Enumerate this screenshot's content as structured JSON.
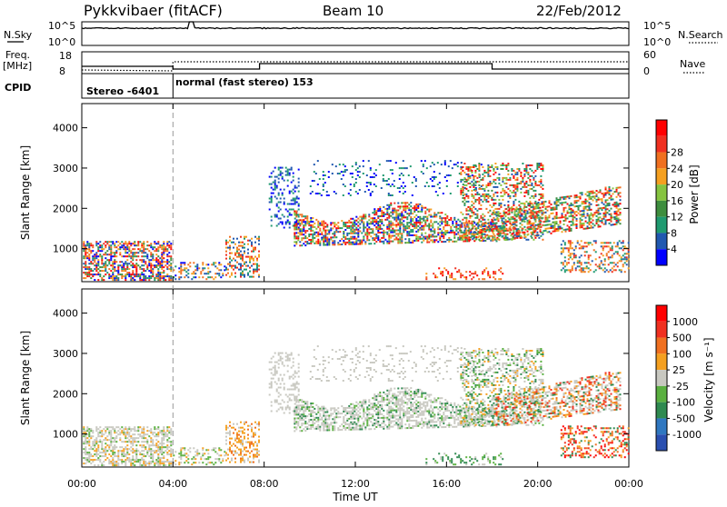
{
  "header": {
    "station": "Pykkvibaer (fitACF)",
    "beam": "Beam 10",
    "date": "22/Feb/2012"
  },
  "summary_panel": {
    "nsky_label": "N.Sky",
    "nsky_ticks": [
      "10^5",
      "10^0"
    ],
    "nsearch_label": "N.Search",
    "nsearch_ticks": [
      "10^5",
      "10^0"
    ],
    "freq_label": "Freq.",
    "freq_unit": "[MHz]",
    "freq_ticks": [
      "18",
      "8"
    ],
    "nave_label": "Nave",
    "nave_ticks": [
      "60",
      "0"
    ],
    "cpid_label": "CPID",
    "cpid_segments": [
      {
        "label": "Stereo -6401",
        "start_hour": 0,
        "end_hour": 4.0
      },
      {
        "label": "normal (fast stereo) 153",
        "start_hour": 4.0,
        "end_hour": 24
      }
    ]
  },
  "time_axis": {
    "title": "Time UT",
    "ticks": [
      "00:00",
      "04:00",
      "08:00",
      "12:00",
      "16:00",
      "20:00",
      "00:00"
    ]
  },
  "chart_data": [
    {
      "type": "heatmap",
      "name": "power",
      "ylabel": "Slant Range [km]",
      "xlabel": "Time UT",
      "xlim_hours": [
        0,
        24
      ],
      "ylim_km": [
        180,
        4600
      ],
      "yticks": [
        "1000",
        "2000",
        "3000",
        "4000"
      ],
      "colorbar": {
        "label": "Power [dB]",
        "ticks": [
          "4",
          "8",
          "12",
          "16",
          "20",
          "24",
          "28"
        ],
        "colors": [
          "#0000ff",
          "#2058b0",
          "#1f9a70",
          "#3e8e3e",
          "#86c440",
          "#f5a020",
          "#f07020",
          "#f03020",
          "#ff0000"
        ]
      },
      "annotations": [
        "CPID change marker at 04:00 UT (dashed line)"
      ]
    },
    {
      "type": "heatmap",
      "name": "velocity",
      "ylabel": "Slant Range [km]",
      "xlabel": "Time UT",
      "xlim_hours": [
        0,
        24
      ],
      "ylim_km": [
        180,
        4600
      ],
      "yticks": [
        "1000",
        "2000",
        "3000",
        "4000"
      ],
      "colorbar": {
        "label": "Velocity [m s⁻¹]",
        "ticks": [
          "1000",
          "500",
          "100",
          "25",
          "-25",
          "-100",
          "-500",
          "-1000"
        ],
        "colors": [
          "#2a4fb0",
          "#2f77c0",
          "#2f8a50",
          "#5ab040",
          "#c8c8c0",
          "#f5a020",
          "#f07020",
          "#f03020",
          "#ff0000"
        ]
      }
    }
  ]
}
